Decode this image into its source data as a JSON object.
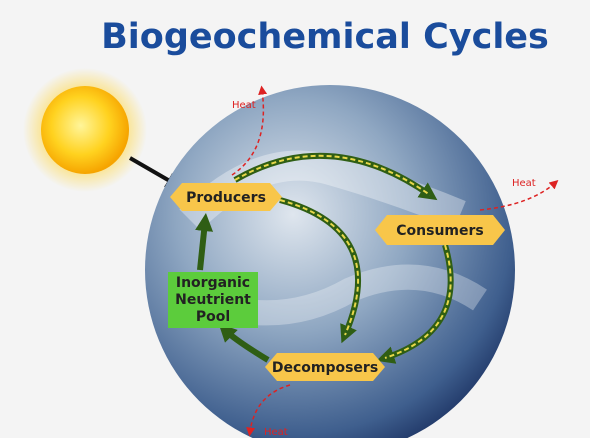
{
  "header": {
    "title": "Biogeochemical Cycles"
  },
  "nodes": [
    {
      "label": "Producers"
    },
    {
      "label": "Consumers"
    },
    {
      "label": "Decomposers"
    },
    {
      "lines": [
        "Inorganic",
        "Neutrient",
        "Pool"
      ]
    }
  ],
  "heat_labels": [
    "Heat",
    "Heat",
    "Heat"
  ]
}
